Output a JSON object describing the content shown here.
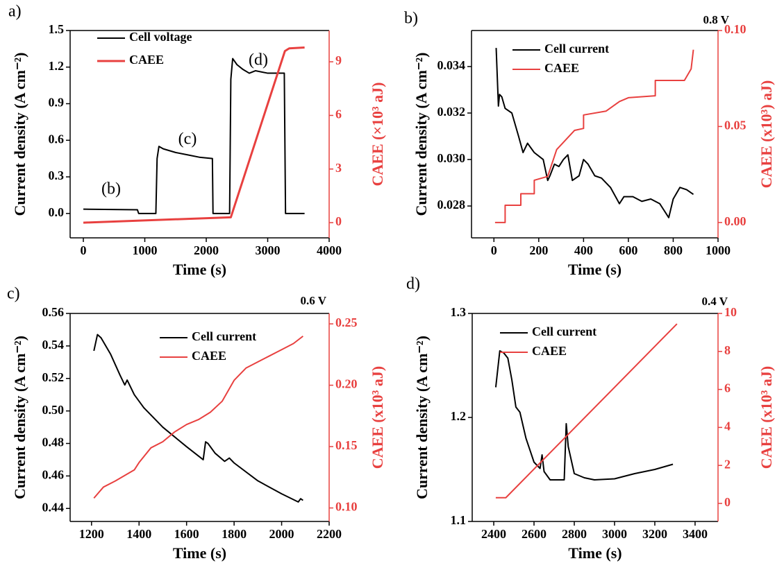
{
  "chart_data": [
    {
      "type": "line",
      "panel": "a)",
      "annotations": [
        "(b)",
        "(c)",
        "(d)"
      ],
      "xlabel": "Time (s)",
      "ylabel": "Current density (A cm⁻²)",
      "y2label": "CAEE (×10³ aJ)",
      "xlim": [
        -215,
        4000
      ],
      "xticks": [
        0,
        1000,
        2000,
        3000,
        4000
      ],
      "ylim": [
        -0.2,
        1.5
      ],
      "yticks": [
        {
          "value": 0,
          "label": "0.0"
        },
        0.3,
        0.6,
        0.9,
        1.2,
        1.5
      ],
      "y2lim": [
        -0.85,
        10.75
      ],
      "y2ticks": [
        0,
        3,
        6,
        9
      ],
      "series": [
        {
          "name": "Cell voltage",
          "color": "#000000",
          "x": [
            0,
            880,
            900,
            1000,
            1180,
            1200,
            1230,
            1300,
            1500,
            1700,
            1900,
            2100,
            2110,
            2380,
            2400,
            2430,
            2500,
            2600,
            2700,
            2800,
            3000,
            3200,
            3270,
            3290,
            3600
          ],
          "values": [
            0.035,
            0.03,
            0.0,
            0.0,
            0.0,
            0.45,
            0.55,
            0.53,
            0.5,
            0.48,
            0.46,
            0.45,
            0.0,
            0.0,
            1.1,
            1.27,
            1.22,
            1.18,
            1.15,
            1.17,
            1.15,
            1.15,
            1.15,
            0.0,
            0.0
          ]
        },
        {
          "name": "CAEE",
          "color": "#e8403f",
          "axis": "y2",
          "x": [
            0,
            2400,
            3280,
            3350,
            3600
          ],
          "values": [
            0,
            0.3,
            9.6,
            9.75,
            9.8
          ]
        }
      ]
    },
    {
      "type": "line",
      "panel": "b)",
      "note": "0.8 V",
      "xlabel": "Time (s)",
      "ylabel": "Current density (A cm⁻²)",
      "y2label": "CAEE (x10³) aJ)",
      "xlim": [
        -100,
        1000
      ],
      "xticks": [
        0,
        200,
        400,
        600,
        800,
        1000
      ],
      "ylim": [
        0.02663,
        0.03555
      ],
      "yticks": [
        0.028,
        {
          "value": 0.03,
          "label": "0.030"
        },
        0.032,
        0.034
      ],
      "y2lim": [
        -0.008,
        0.1
      ],
      "y2ticks": [
        {
          "value": 0,
          "label": "0.00"
        },
        0.05,
        {
          "value": 0.1,
          "label": "0.10"
        }
      ],
      "series": [
        {
          "name": "Cell current",
          "color": "#000000",
          "x": [
            10,
            20,
            25,
            35,
            50,
            80,
            110,
            130,
            150,
            180,
            220,
            240,
            250,
            270,
            290,
            310,
            330,
            350,
            380,
            400,
            420,
            450,
            480,
            520,
            560,
            580,
            620,
            660,
            700,
            740,
            780,
            800,
            830,
            860,
            890
          ],
          "values": [
            0.0348,
            0.0323,
            0.0328,
            0.0327,
            0.0322,
            0.032,
            0.031,
            0.0303,
            0.0307,
            0.0303,
            0.03,
            0.0291,
            0.0293,
            0.0298,
            0.0297,
            0.03,
            0.0302,
            0.0291,
            0.0293,
            0.03,
            0.0298,
            0.0293,
            0.0292,
            0.0288,
            0.0281,
            0.0284,
            0.0284,
            0.0282,
            0.0283,
            0.0281,
            0.0275,
            0.0283,
            0.0288,
            0.0287,
            0.0285
          ]
        },
        {
          "name": "CAEE",
          "color": "#e8403f",
          "axis": "y2",
          "x": [
            5,
            50,
            50,
            120,
            120,
            180,
            180,
            240,
            260,
            280,
            320,
            360,
            400,
            400,
            500,
            560,
            600,
            720,
            720,
            850,
            880,
            890
          ],
          "values": [
            0,
            0,
            0.009,
            0.009,
            0.015,
            0.015,
            0.022,
            0.024,
            0.031,
            0.038,
            0.043,
            0.048,
            0.049,
            0.056,
            0.058,
            0.063,
            0.065,
            0.066,
            0.074,
            0.074,
            0.08,
            0.09
          ]
        }
      ]
    },
    {
      "type": "line",
      "panel": "c)",
      "note": "0.6 V",
      "xlabel": "Time (s)",
      "ylabel": "Current density (A cm⁻²)",
      "y2label": "CAEE (x10³ aJ)",
      "xlim": [
        1110,
        2200
      ],
      "xticks": [
        1200,
        1400,
        1600,
        1800,
        2000,
        2200
      ],
      "ylim": [
        0.432,
        0.56
      ],
      "yticks": [
        0.44,
        0.46,
        0.48,
        {
          "value": 0.5,
          "label": "0.50"
        },
        0.52,
        0.54,
        0.56
      ],
      "y2lim": [
        0.089,
        0.2585
      ],
      "y2ticks": [
        {
          "value": 0.1,
          "label": "0.10"
        },
        0.15,
        {
          "value": 0.2,
          "label": "0.20"
        },
        0.25
      ],
      "series": [
        {
          "name": "Cell current",
          "color": "#000000",
          "x": [
            1210,
            1225,
            1240,
            1280,
            1320,
            1340,
            1350,
            1380,
            1420,
            1500,
            1600,
            1670,
            1680,
            1690,
            1720,
            1760,
            1780,
            1800,
            1900,
            2000,
            2070,
            2080,
            2090
          ],
          "values": [
            0.537,
            0.547,
            0.545,
            0.535,
            0.522,
            0.516,
            0.519,
            0.51,
            0.502,
            0.49,
            0.478,
            0.47,
            0.481,
            0.48,
            0.474,
            0.469,
            0.471,
            0.468,
            0.457,
            0.449,
            0.444,
            0.446,
            0.445
          ]
        },
        {
          "name": "CAEE",
          "color": "#e8403f",
          "axis": "y2",
          "x": [
            1210,
            1250,
            1300,
            1380,
            1400,
            1450,
            1500,
            1550,
            1600,
            1650,
            1700,
            1750,
            1800,
            1850,
            1900,
            1950,
            2000,
            2050,
            2090
          ],
          "values": [
            0.108,
            0.117,
            0.122,
            0.131,
            0.137,
            0.149,
            0.154,
            0.162,
            0.168,
            0.172,
            0.178,
            0.187,
            0.204,
            0.214,
            0.219,
            0.224,
            0.229,
            0.234,
            0.24
          ]
        }
      ]
    },
    {
      "type": "line",
      "panel": "d)",
      "note": "0.4 V",
      "xlabel": "Time (s)",
      "ylabel": "Current density (A cm⁻²)",
      "y2label": "CAEE (x10³ aJ)",
      "xlim": [
        2293,
        3514
      ],
      "xticks": [
        2400,
        2600,
        2800,
        3000,
        3200,
        3400
      ],
      "ylim": [
        1.1,
        1.3
      ],
      "yticks": [
        1.1,
        1.2,
        1.3
      ],
      "y2lim": [
        -0.95,
        10
      ],
      "y2ticks": [
        0,
        2,
        4,
        6,
        8,
        10
      ],
      "series": [
        {
          "name": "Cell current",
          "color": "#000000",
          "x": [
            2410,
            2430,
            2450,
            2470,
            2490,
            2510,
            2530,
            2560,
            2600,
            2630,
            2640,
            2650,
            2680,
            2720,
            2750,
            2760,
            2770,
            2800,
            2850,
            2900,
            3000,
            3100,
            3200,
            3290
          ],
          "values": [
            1.229,
            1.264,
            1.262,
            1.257,
            1.236,
            1.21,
            1.205,
            1.18,
            1.157,
            1.151,
            1.164,
            1.148,
            1.14,
            1.14,
            1.14,
            1.194,
            1.172,
            1.146,
            1.142,
            1.14,
            1.141,
            1.146,
            1.15,
            1.155
          ]
        },
        {
          "name": "CAEE",
          "color": "#e8403f",
          "axis": "y2",
          "x": [
            2410,
            2460,
            3310
          ],
          "values": [
            0.3,
            0.3,
            9.45
          ]
        }
      ]
    }
  ]
}
